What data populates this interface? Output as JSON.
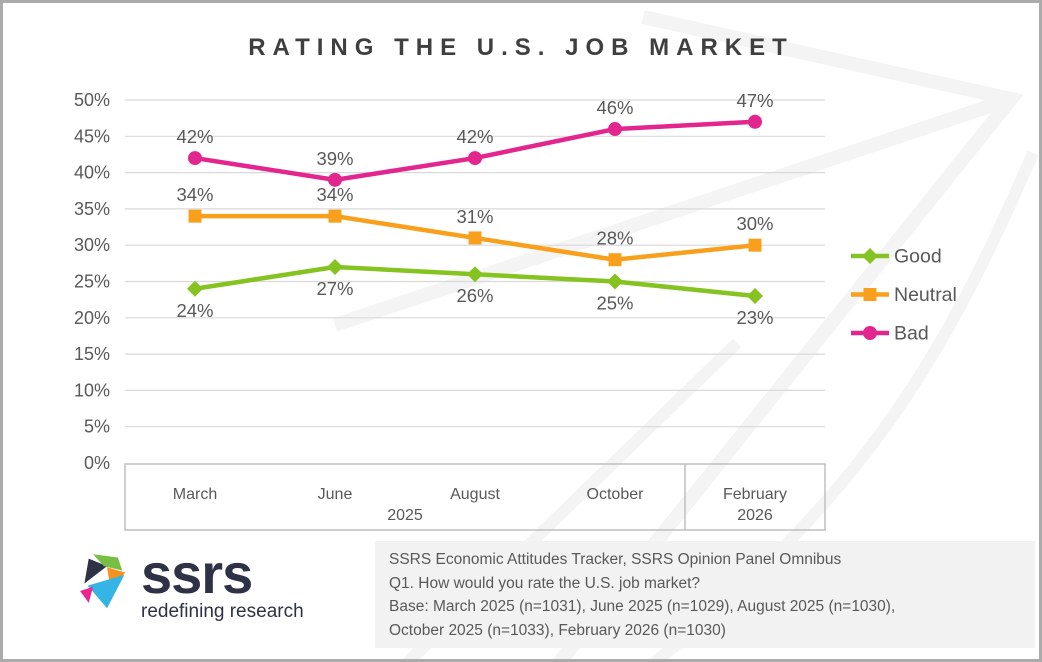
{
  "page": {
    "title": "RATING THE U.S. JOB MARKET"
  },
  "chart_data": {
    "type": "line",
    "title": "RATING THE U.S. JOB MARKET",
    "categories": [
      "March",
      "June",
      "August",
      "October",
      "February"
    ],
    "category_groups": [
      {
        "label": "2025",
        "start": 0,
        "end": 3
      },
      {
        "label": "2026",
        "start": 4,
        "end": 4
      }
    ],
    "series": [
      {
        "name": "Good",
        "color": "#85C320",
        "marker": "diamond",
        "label_position": "below",
        "values": [
          24,
          27,
          26,
          25,
          23
        ]
      },
      {
        "name": "Neutral",
        "color": "#F8A01B",
        "marker": "square",
        "label_position": "above",
        "values": [
          34,
          34,
          31,
          28,
          30
        ]
      },
      {
        "name": "Bad",
        "color": "#E3268E",
        "marker": "circle",
        "label_position": "above",
        "values": [
          42,
          39,
          42,
          46,
          47
        ]
      }
    ],
    "yticks": [
      "0%",
      "5%",
      "10%",
      "15%",
      "20%",
      "25%",
      "30%",
      "35%",
      "40%",
      "45%",
      "50%"
    ],
    "ylim": [
      0,
      50
    ],
    "ytick_step": 5,
    "data_label_suffix": "%",
    "grid": "horizontal",
    "legend_position": "right"
  },
  "footer": {
    "logo": {
      "brand": "ssrs",
      "tagline": "redefining research"
    },
    "source_lines": [
      "SSRS Economic Attitudes Tracker, SSRS Opinion Panel Omnibus",
      "Q1. How would you rate the U.S. job market?",
      "Base: March 2025 (n=1031), June 2025 (n=1029), August 2025 (n=1030),",
      "October 2025 (n=1033), February 2026 (n=1030)"
    ]
  },
  "colors": {
    "title_text": "#3F3F3F",
    "axis_text": "#595959",
    "gridline": "#D9D9D9",
    "axis_box_border": "#BFBFBF",
    "page_border": "#ABABAB",
    "watermark": "#F4F4F4",
    "source_box_bg": "#F2F2F2",
    "logo_navy": "#2F3247",
    "logo_green": "#76BF43",
    "logo_orange": "#F6921E",
    "logo_blue": "#35B4E5",
    "logo_pink": "#EC268F"
  }
}
